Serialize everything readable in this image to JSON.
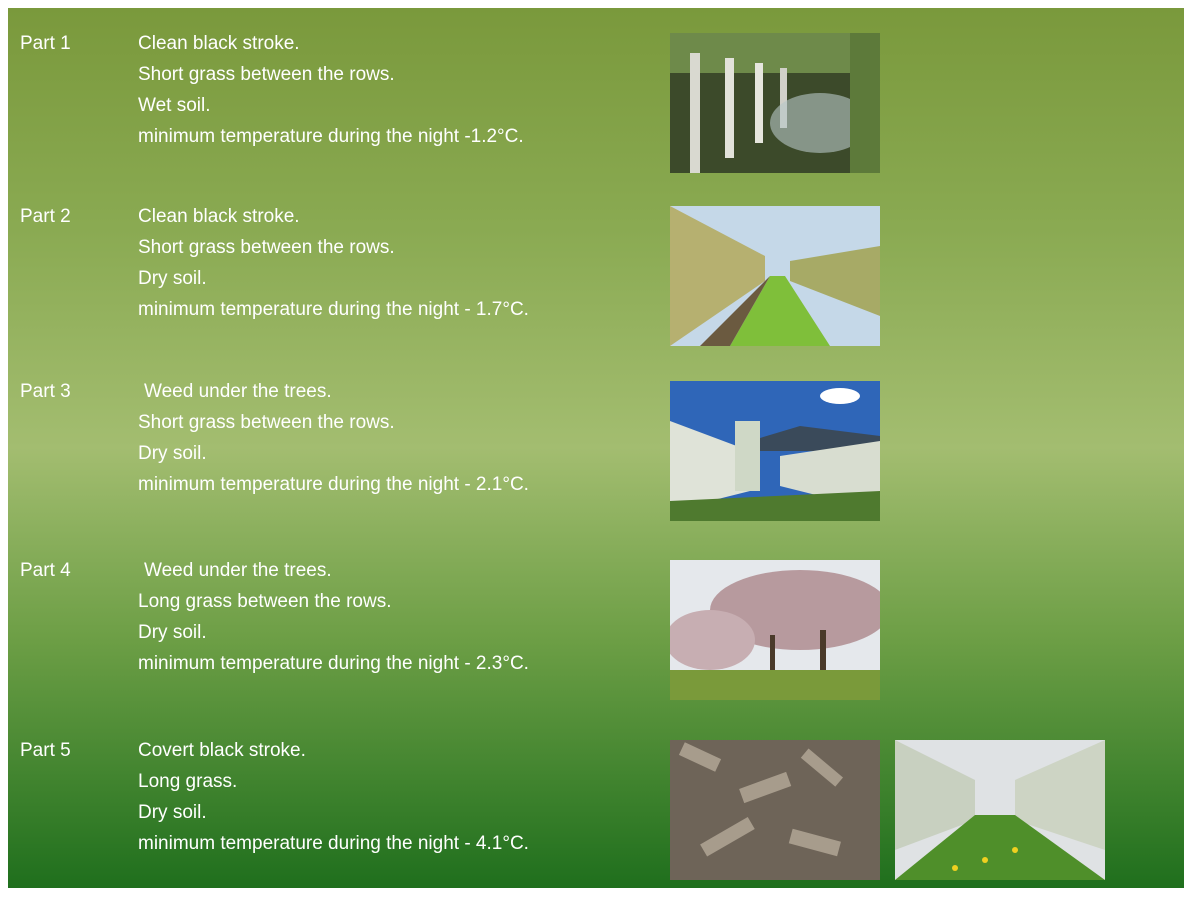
{
  "parts": [
    {
      "label": "Part 1",
      "lines": [
        "Clean black stroke.",
        "Short grass between the rows.",
        "Wet soil.",
        "minimum temperature during the night  -1.2°C."
      ]
    },
    {
      "label": "Part 2",
      "lines": [
        "Clean black stroke.",
        "Short grass between the rows.",
        "Dry soil.",
        "minimum temperature during the night  - 1.7°C."
      ]
    },
    {
      "label": "Part 3",
      "lines": [
        "Weed under the trees.",
        "Short grass between the rows.",
        "Dry soil.",
        "minimum temperature during the night  - 2.1°C."
      ]
    },
    {
      "label": "Part 4",
      "lines": [
        "Weed under the trees.",
        "Long grass between the rows.",
        "Dry soil.",
        "minimum temperature during the night   - 2.3°C."
      ]
    },
    {
      "label": "Part 5",
      "lines": [
        "Covert black stroke.",
        "Long grass.",
        "Dry soil.",
        "minimum temperature during the night  - 4.1°C."
      ]
    }
  ]
}
